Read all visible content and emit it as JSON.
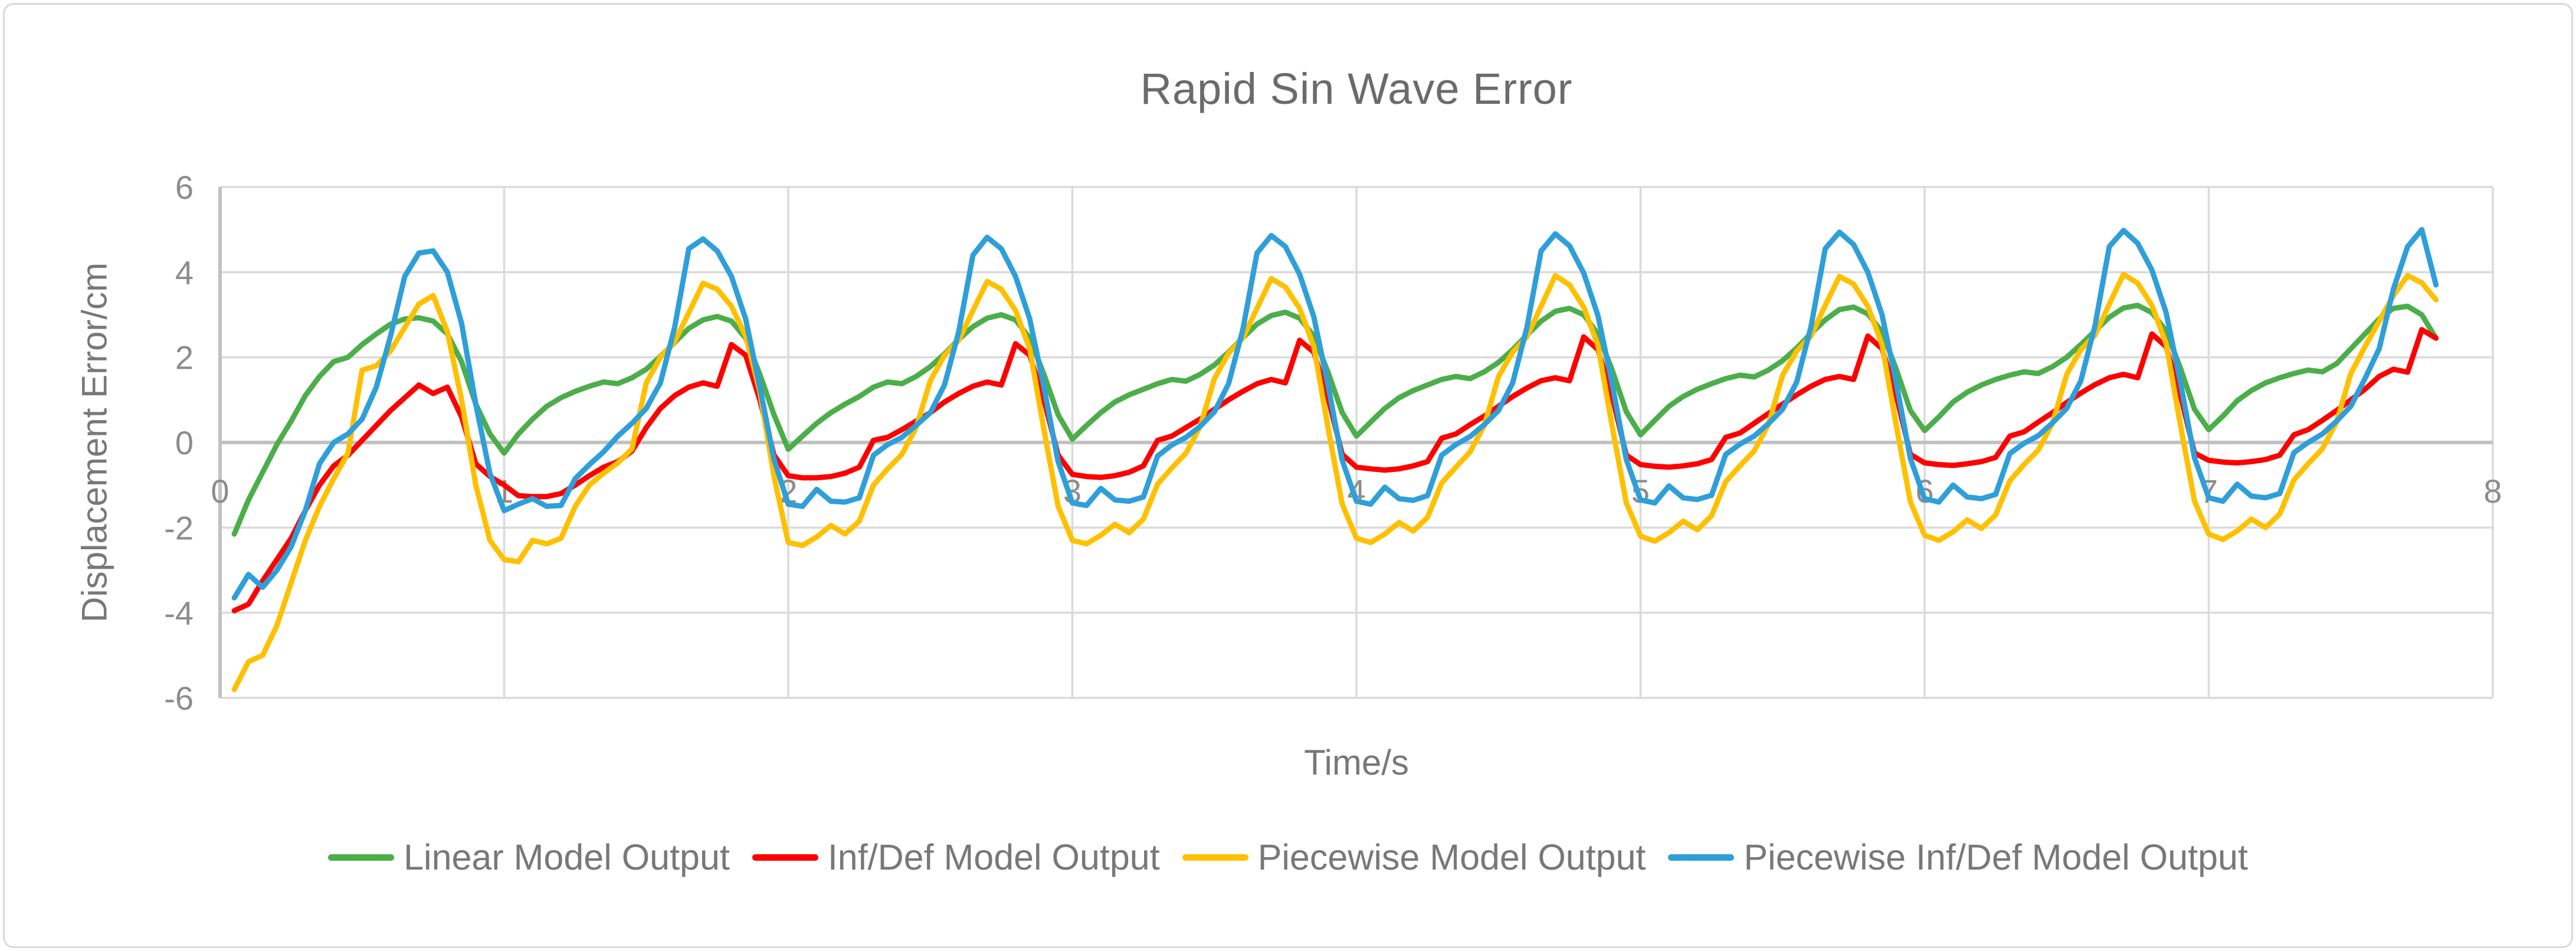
{
  "chart": {
    "title": "Rapid Sin Wave Error"
  },
  "colors": {
    "background": "#FFFFFF",
    "border": "#D9D9D9",
    "gridline": "#DADADA",
    "axis_line": "#C1C1C1",
    "tick_text": "#8C8C8C",
    "title_text": "#6B6B6B",
    "label_text": "#787878"
  },
  "chart_data": {
    "type": "line",
    "title": "Rapid Sin Wave Error",
    "xlabel": "Time/s",
    "ylabel": "Displacement Error/cm",
    "xlim": [
      0,
      8
    ],
    "ylim": [
      -6,
      6
    ],
    "x_ticks": [
      0,
      1,
      2,
      3,
      4,
      5,
      6,
      7,
      8
    ],
    "y_ticks": [
      6,
      4,
      2,
      0,
      -2,
      -4,
      -6
    ],
    "grid": true,
    "legend_position": "bottom",
    "x_start": 0.05,
    "x_step": 0.05,
    "n_points": 156,
    "series": [
      {
        "name": "Linear Model Output",
        "color": "#4BAE4A",
        "values": [
          -2.15,
          -1.35,
          -0.7,
          -0.05,
          0.5,
          1.1,
          1.55,
          1.9,
          2.0,
          2.3,
          2.55,
          2.78,
          2.9,
          2.93,
          2.85,
          2.55,
          1.9,
          0.9,
          0.2,
          -0.25,
          0.2,
          0.55,
          0.85,
          1.05,
          1.2,
          1.32,
          1.42,
          1.38,
          1.52,
          1.72,
          2.02,
          2.35,
          2.68,
          2.88,
          2.96,
          2.85,
          2.45,
          1.6,
          0.65,
          -0.16,
          0.15,
          0.45,
          0.7,
          0.9,
          1.08,
          1.3,
          1.42,
          1.38,
          1.55,
          1.78,
          2.08,
          2.42,
          2.72,
          2.92,
          3.0,
          2.88,
          2.45,
          1.6,
          0.65,
          0.08,
          0.4,
          0.7,
          0.95,
          1.12,
          1.25,
          1.38,
          1.48,
          1.44,
          1.6,
          1.82,
          2.12,
          2.46,
          2.78,
          2.98,
          3.06,
          2.92,
          2.5,
          1.65,
          0.7,
          0.15,
          0.48,
          0.8,
          1.05,
          1.22,
          1.35,
          1.48,
          1.55,
          1.5,
          1.66,
          1.88,
          2.18,
          2.52,
          2.85,
          3.08,
          3.15,
          3.0,
          2.55,
          1.7,
          0.72,
          0.18,
          0.52,
          0.85,
          1.08,
          1.25,
          1.38,
          1.5,
          1.58,
          1.54,
          1.7,
          1.92,
          2.22,
          2.56,
          2.88,
          3.12,
          3.18,
          3.02,
          2.6,
          1.72,
          0.75,
          0.28,
          0.6,
          0.95,
          1.18,
          1.35,
          1.48,
          1.58,
          1.66,
          1.62,
          1.78,
          2.0,
          2.3,
          2.62,
          2.94,
          3.16,
          3.22,
          3.05,
          2.62,
          1.75,
          0.78,
          0.3,
          0.62,
          0.98,
          1.22,
          1.4,
          1.52,
          1.62,
          1.7,
          1.66,
          1.85,
          2.2,
          2.55,
          2.9,
          3.15,
          3.2,
          3.0,
          2.45
        ]
      },
      {
        "name": "Inf/Def Model Output",
        "color": "#FE0000",
        "values": [
          -3.95,
          -3.8,
          -3.25,
          -2.75,
          -2.25,
          -1.6,
          -1.0,
          -0.55,
          -0.3,
          0.05,
          0.4,
          0.75,
          1.05,
          1.35,
          1.15,
          1.3,
          0.6,
          -0.5,
          -0.8,
          -1.0,
          -1.25,
          -1.27,
          -1.27,
          -1.2,
          -1.0,
          -0.78,
          -0.58,
          -0.45,
          -0.2,
          0.35,
          0.8,
          1.1,
          1.3,
          1.4,
          1.32,
          2.3,
          2.05,
          1.0,
          -0.3,
          -0.78,
          -0.83,
          -0.83,
          -0.8,
          -0.72,
          -0.58,
          0.05,
          0.12,
          0.3,
          0.5,
          0.7,
          0.95,
          1.15,
          1.32,
          1.42,
          1.35,
          2.32,
          2.05,
          1.0,
          -0.3,
          -0.75,
          -0.8,
          -0.82,
          -0.78,
          -0.7,
          -0.55,
          0.05,
          0.15,
          0.35,
          0.55,
          0.78,
          1.0,
          1.2,
          1.38,
          1.48,
          1.4,
          2.4,
          2.12,
          1.05,
          -0.28,
          -0.58,
          -0.62,
          -0.65,
          -0.62,
          -0.55,
          -0.45,
          0.1,
          0.2,
          0.42,
          0.62,
          0.85,
          1.08,
          1.28,
          1.45,
          1.52,
          1.45,
          2.48,
          2.18,
          1.08,
          -0.3,
          -0.52,
          -0.56,
          -0.58,
          -0.55,
          -0.5,
          -0.4,
          0.12,
          0.22,
          0.45,
          0.68,
          0.9,
          1.12,
          1.32,
          1.48,
          1.55,
          1.48,
          2.5,
          2.2,
          1.1,
          -0.28,
          -0.48,
          -0.52,
          -0.54,
          -0.5,
          -0.45,
          -0.35,
          0.15,
          0.25,
          0.48,
          0.7,
          0.94,
          1.16,
          1.36,
          1.52,
          1.6,
          1.52,
          2.55,
          2.25,
          1.12,
          -0.25,
          -0.42,
          -0.46,
          -0.48,
          -0.45,
          -0.4,
          -0.3,
          0.18,
          0.3,
          0.52,
          0.75,
          1.0,
          1.25,
          1.55,
          1.72,
          1.65,
          2.65,
          2.45
        ]
      },
      {
        "name": "Piecewise Model Output",
        "color": "#FFC000",
        "values": [
          -5.8,
          -5.15,
          -5.0,
          -4.3,
          -3.3,
          -2.3,
          -1.5,
          -0.85,
          -0.25,
          1.7,
          1.8,
          2.15,
          2.7,
          3.25,
          3.45,
          2.6,
          1.0,
          -1.0,
          -2.3,
          -2.75,
          -2.8,
          -2.3,
          -2.38,
          -2.25,
          -1.5,
          -1.0,
          -0.72,
          -0.48,
          -0.15,
          1.4,
          2.0,
          2.37,
          3.05,
          3.74,
          3.6,
          3.2,
          2.5,
          1.2,
          -0.8,
          -2.35,
          -2.42,
          -2.22,
          -1.95,
          -2.15,
          -1.85,
          -1.0,
          -0.62,
          -0.28,
          0.35,
          1.45,
          2.05,
          2.4,
          3.1,
          3.78,
          3.6,
          3.1,
          2.2,
          0.3,
          -1.5,
          -2.3,
          -2.38,
          -2.18,
          -1.92,
          -2.12,
          -1.8,
          -0.98,
          -0.6,
          -0.25,
          0.38,
          1.5,
          2.1,
          2.45,
          3.15,
          3.85,
          3.65,
          3.15,
          2.25,
          0.35,
          -1.45,
          -2.25,
          -2.35,
          -2.15,
          -1.88,
          -2.08,
          -1.76,
          -0.95,
          -0.58,
          -0.22,
          0.4,
          1.55,
          2.12,
          2.48,
          3.2,
          3.92,
          3.7,
          3.18,
          2.28,
          0.38,
          -1.42,
          -2.2,
          -2.32,
          -2.12,
          -1.85,
          -2.05,
          -1.72,
          -0.92,
          -0.55,
          -0.2,
          0.42,
          1.58,
          2.15,
          2.5,
          3.22,
          3.9,
          3.72,
          3.2,
          2.3,
          0.4,
          -1.4,
          -2.18,
          -2.3,
          -2.1,
          -1.82,
          -2.02,
          -1.7,
          -0.9,
          -0.52,
          -0.18,
          0.45,
          1.6,
          2.18,
          2.52,
          3.25,
          3.95,
          3.74,
          3.22,
          2.32,
          0.42,
          -1.38,
          -2.15,
          -2.28,
          -2.08,
          -1.8,
          -2.0,
          -1.68,
          -0.88,
          -0.5,
          -0.15,
          0.48,
          1.62,
          2.25,
          2.85,
          3.45,
          3.92,
          3.75,
          3.35
        ]
      },
      {
        "name": "Piecewise Inf/Def Model Output",
        "color": "#2E9FD9",
        "values": [
          -3.65,
          -3.1,
          -3.4,
          -3.0,
          -2.45,
          -1.6,
          -0.5,
          0.0,
          0.2,
          0.55,
          1.3,
          2.5,
          3.9,
          4.45,
          4.5,
          4.0,
          2.8,
          0.9,
          -0.73,
          -1.6,
          -1.45,
          -1.32,
          -1.5,
          -1.48,
          -0.85,
          -0.52,
          -0.22,
          0.15,
          0.45,
          0.8,
          1.4,
          2.7,
          4.55,
          4.78,
          4.5,
          3.9,
          2.9,
          1.3,
          -0.4,
          -1.45,
          -1.5,
          -1.1,
          -1.38,
          -1.4,
          -1.3,
          -0.3,
          -0.05,
          0.12,
          0.4,
          0.7,
          1.35,
          2.6,
          4.4,
          4.82,
          4.55,
          3.9,
          2.9,
          1.3,
          -0.45,
          -1.42,
          -1.48,
          -1.08,
          -1.35,
          -1.38,
          -1.28,
          -0.32,
          -0.06,
          0.12,
          0.38,
          0.72,
          1.38,
          2.65,
          4.45,
          4.86,
          4.6,
          3.95,
          2.95,
          1.35,
          -0.42,
          -1.38,
          -1.45,
          -1.05,
          -1.32,
          -1.36,
          -1.25,
          -0.3,
          -0.05,
          0.14,
          0.42,
          0.75,
          1.4,
          2.7,
          4.5,
          4.9,
          4.62,
          3.98,
          2.98,
          1.38,
          -0.4,
          -1.35,
          -1.42,
          -1.02,
          -1.3,
          -1.34,
          -1.24,
          -0.28,
          -0.04,
          0.15,
          0.44,
          0.78,
          1.42,
          2.72,
          4.55,
          4.94,
          4.65,
          4.0,
          3.0,
          1.4,
          -0.38,
          -1.32,
          -1.4,
          -1.0,
          -1.28,
          -1.32,
          -1.22,
          -0.26,
          -0.02,
          0.16,
          0.46,
          0.8,
          1.45,
          2.75,
          4.6,
          4.98,
          4.68,
          4.05,
          3.05,
          1.42,
          -0.36,
          -1.3,
          -1.38,
          -0.98,
          -1.26,
          -1.3,
          -1.2,
          -0.24,
          0.0,
          0.2,
          0.5,
          0.85,
          1.5,
          2.2,
          3.6,
          4.6,
          5.0,
          3.7
        ]
      }
    ]
  }
}
